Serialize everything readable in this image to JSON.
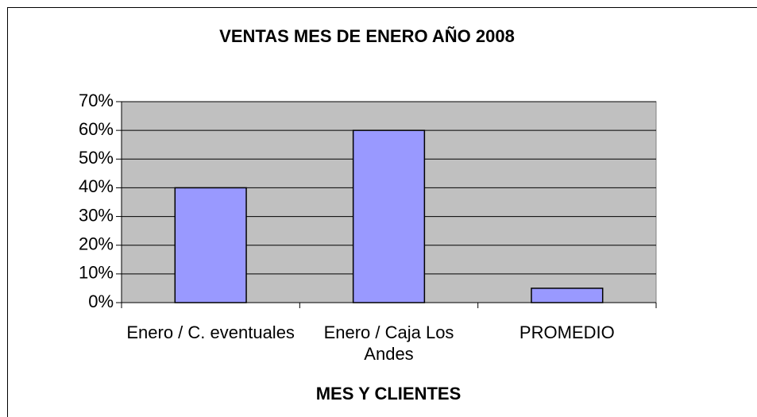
{
  "chart_data": {
    "type": "bar",
    "title": "VENTAS MES DE ENERO AÑO 2008",
    "x_label": "MES Y CLIENTES",
    "categories": [
      "Enero / C. eventuales",
      "Enero / Caja Los Andes",
      "PROMEDIO"
    ],
    "values": [
      40,
      60,
      5
    ],
    "color": "#9999ff",
    "ylim": [
      0,
      70
    ],
    "yticks": [
      {
        "value": 0,
        "label": "0%"
      },
      {
        "value": 10,
        "label": "10%"
      },
      {
        "value": 20,
        "label": "20%"
      },
      {
        "value": 30,
        "label": "30%"
      },
      {
        "value": 40,
        "label": "40%"
      },
      {
        "value": 50,
        "label": "50%"
      },
      {
        "value": 60,
        "label": "60%"
      },
      {
        "value": 70,
        "label": "70%"
      }
    ],
    "grid": true
  }
}
